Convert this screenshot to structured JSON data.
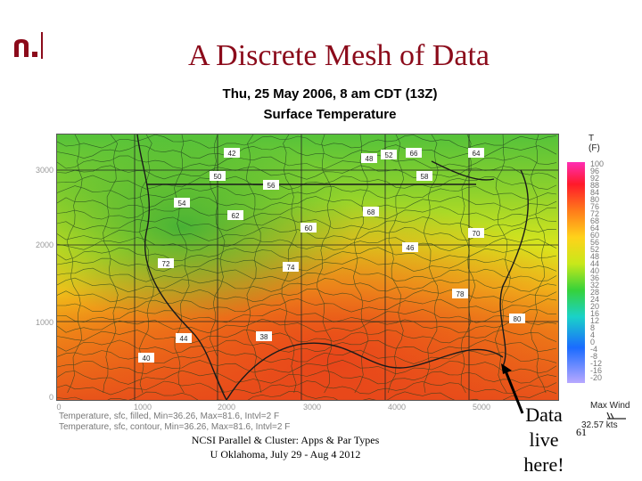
{
  "slide": {
    "title": "A Discrete Mesh of Data",
    "number": "61",
    "colors": {
      "title": "#8b0a1a",
      "logo": "#8b0a1a"
    }
  },
  "map": {
    "date": "Thu, 25 May 2006, 8 am CDT (13Z)",
    "field": "Surface Temperature",
    "y_ticks": [
      "3000",
      "2000",
      "1000",
      "0"
    ],
    "x_ticks": [
      "0",
      "1000",
      "2000",
      "3000",
      "4000",
      "5000"
    ],
    "stats_line1": "Temperature, sfc, filled, Min=36.26, Max=81.6, Intvl=2 F",
    "stats_line2": "Temperature, sfc, contour, Min=36.26, Max=81.6, Intvl=2 F",
    "colorbar_title": [
      "T",
      "(F)"
    ],
    "colorbar_labels": [
      "100",
      "96",
      "92",
      "88",
      "84",
      "80",
      "76",
      "72",
      "68",
      "64",
      "60",
      "56",
      "52",
      "48",
      "44",
      "40",
      "36",
      "32",
      "28",
      "24",
      "20",
      "16",
      "12",
      "8",
      "4",
      "0",
      "-4",
      "-8",
      "-12",
      "-16",
      "-20"
    ],
    "max_wind_label": "Max Wind",
    "max_wind_value": "32.57 kts",
    "contour_labels": [
      "42",
      "48",
      "52",
      "66",
      "64",
      "50",
      "56",
      "58",
      "54",
      "62",
      "60",
      "68",
      "70",
      "72",
      "74",
      "46",
      "78",
      "80",
      "44",
      "38",
      "40"
    ]
  },
  "footer": {
    "line1": "NCSI Parallel & Cluster: Apps & Par Types",
    "line2": "U Oklahoma, July 29 - Aug 4 2012"
  },
  "callout": {
    "line1": "Data",
    "line2": "live",
    "line3": "here!"
  }
}
